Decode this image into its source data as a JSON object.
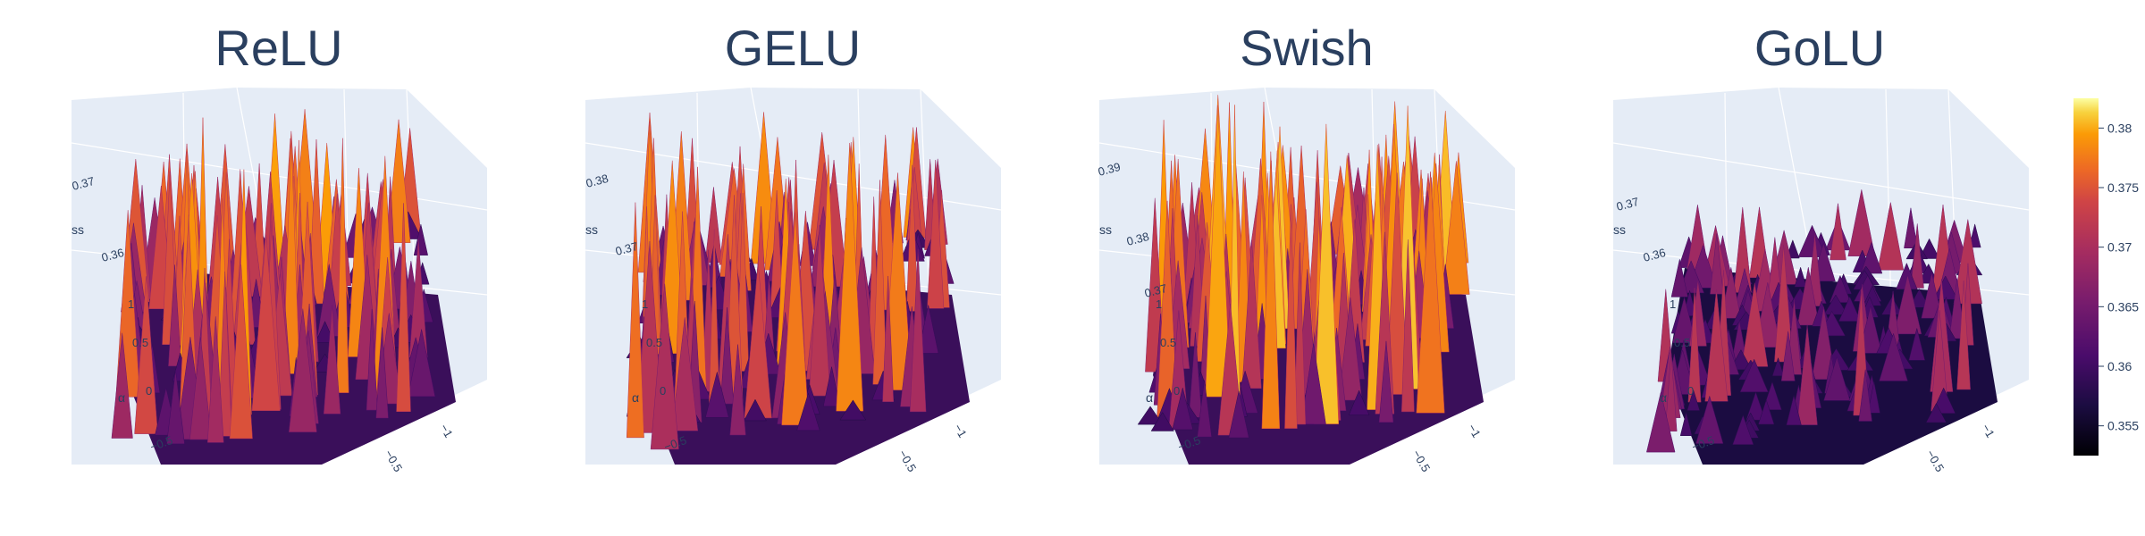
{
  "chart_data": [
    {
      "type": "surface",
      "title": "ReLU",
      "z_ticks": [
        "0.36",
        "0.37"
      ],
      "z_axis_label": "ss",
      "y_ticks": [
        "−0.5",
        "0",
        "0.5",
        "1"
      ],
      "y_axis_label": "α",
      "x_ticks": [
        "−0.5",
        "−1"
      ],
      "z_range": [
        0.352,
        0.382
      ]
    },
    {
      "type": "surface",
      "title": "GELU",
      "z_ticks": [
        "0.37",
        "0.38"
      ],
      "z_axis_label": "ss",
      "y_ticks": [
        "−0.5",
        "0",
        "0.5",
        "1"
      ],
      "y_axis_label": "α",
      "x_ticks": [
        "−0.5",
        "−1"
      ],
      "z_range": [
        0.355,
        0.385
      ]
    },
    {
      "type": "surface",
      "title": "Swish",
      "z_ticks": [
        "0.37",
        "0.38",
        "0.39"
      ],
      "z_axis_label": "ss",
      "y_ticks": [
        "−0.5",
        "0",
        "0.5",
        "1"
      ],
      "y_axis_label": "α",
      "x_ticks": [
        "−0.5",
        "−1"
      ],
      "z_range": [
        0.355,
        0.392
      ]
    },
    {
      "type": "surface",
      "title": "GoLU",
      "z_ticks": [
        "0.36",
        "0.37"
      ],
      "z_axis_label": "ss",
      "y_ticks": [
        "−0.5",
        "0",
        "0.5",
        "1"
      ],
      "y_axis_label": "α",
      "x_ticks": [
        "−0.5",
        "−1"
      ],
      "z_range": [
        0.352,
        0.382
      ]
    }
  ],
  "colorbar": {
    "colorscale": "inferno",
    "range": [
      0.3525,
      0.3825
    ],
    "ticks": [
      "0.355",
      "0.36",
      "0.365",
      "0.37",
      "0.375",
      "0.38"
    ],
    "tick_values": [
      0.355,
      0.36,
      0.365,
      0.37,
      0.375,
      0.38
    ]
  }
}
